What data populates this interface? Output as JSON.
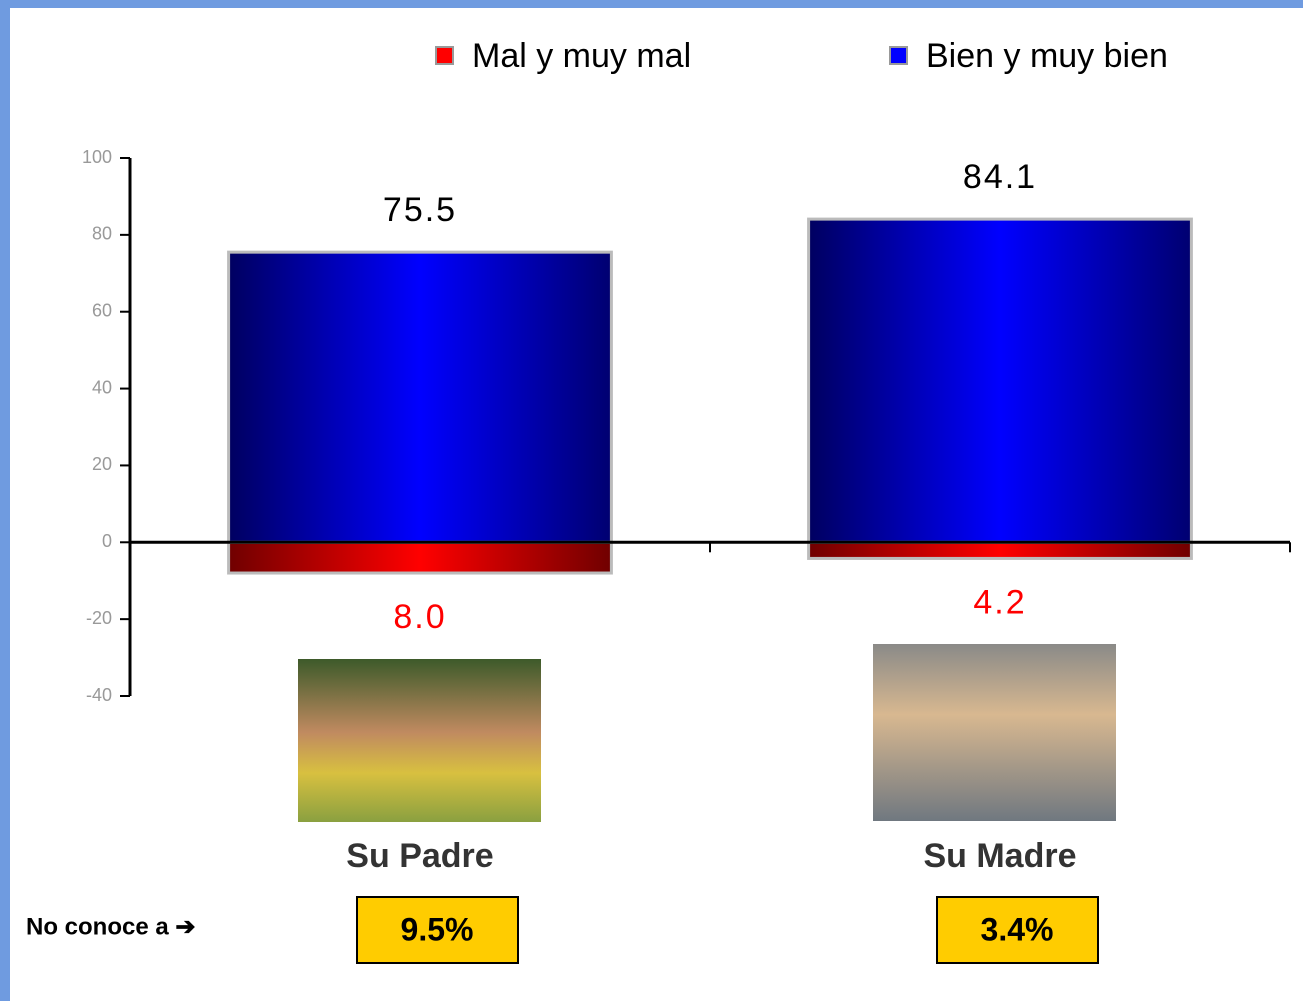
{
  "chart_data": {
    "type": "bar",
    "categories": [
      "Su Padre",
      "Su Madre"
    ],
    "series": [
      {
        "name": "Mal y muy mal",
        "color": "#ff0000",
        "values": [
          -8.0,
          -4.2
        ],
        "value_labels": [
          "8.0",
          "4.2"
        ]
      },
      {
        "name": "Bien y muy bien",
        "color": "#0000ff",
        "values": [
          75.5,
          84.1
        ],
        "value_labels": [
          "75.5",
          "84.1"
        ]
      }
    ],
    "ylim": [
      -40,
      100
    ],
    "yticks": [
      -40,
      -20,
      0,
      20,
      40,
      60,
      80,
      100
    ],
    "grid": false,
    "legend": "top",
    "annotation": "No conoce a ➔",
    "unknown_labels": [
      "9.5%",
      "3.4%"
    ]
  }
}
